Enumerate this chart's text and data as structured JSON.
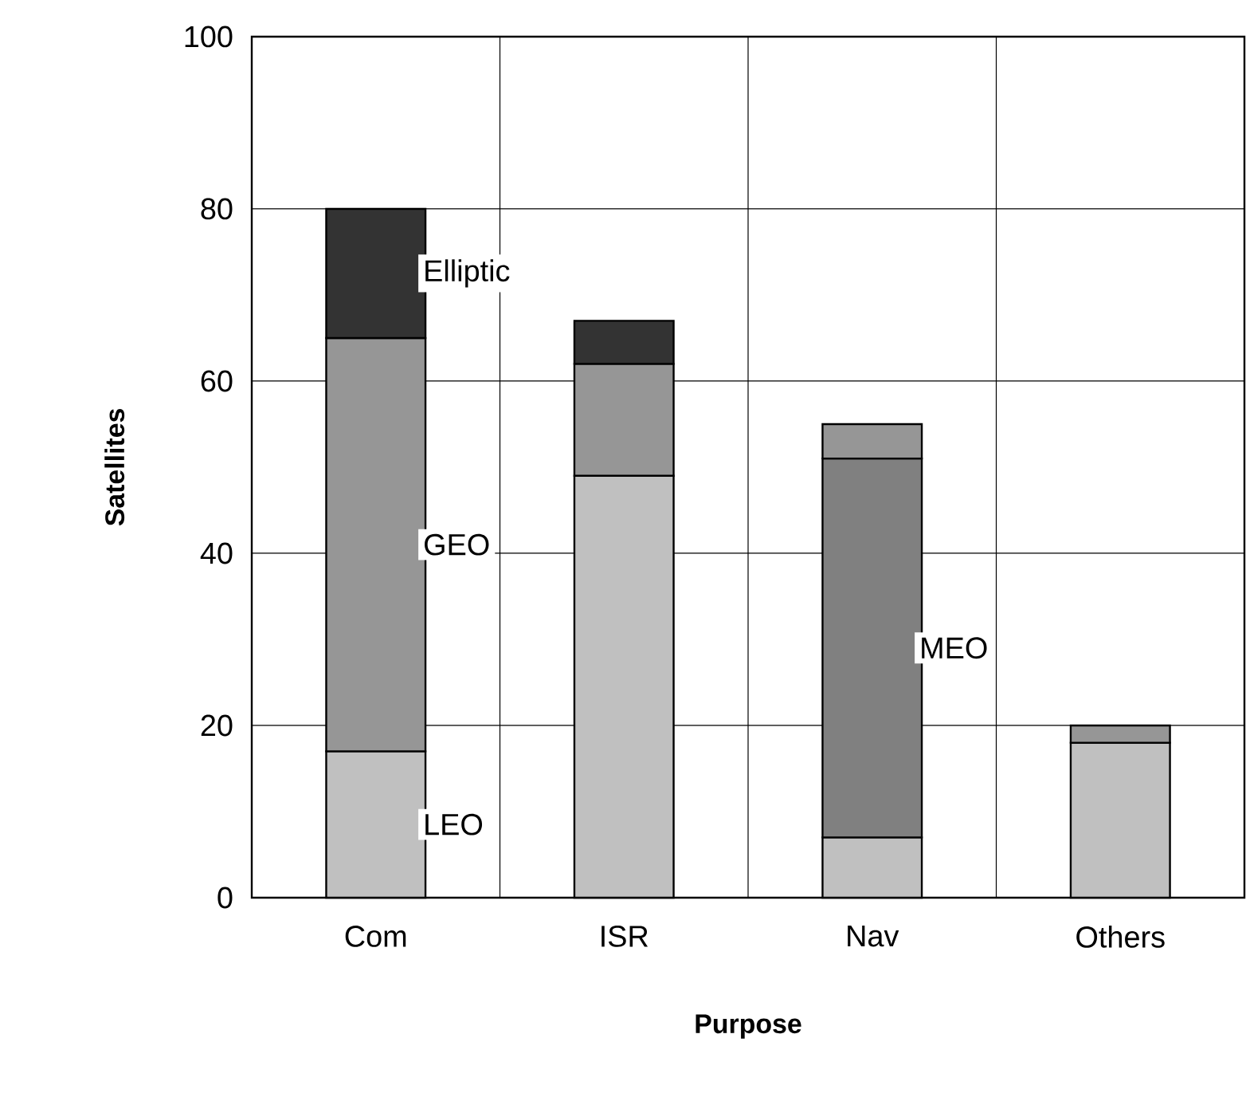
{
  "chart_data": {
    "type": "bar",
    "stacked": true,
    "xlabel": "Purpose",
    "ylabel": "Satellites",
    "categories": [
      "Com",
      "ISR",
      "Nav",
      "Others"
    ],
    "series": [
      {
        "name": "LEO",
        "color": "#c0c0c0",
        "values": [
          17,
          49,
          7,
          18
        ]
      },
      {
        "name": "MEO",
        "color": "#808080",
        "values": [
          null,
          null,
          44,
          null
        ]
      },
      {
        "name": "GEO",
        "color": "#969696",
        "values": [
          48,
          13,
          4,
          2
        ]
      },
      {
        "name": "Elliptic",
        "color": "#333333",
        "values": [
          15,
          5,
          null,
          null
        ]
      }
    ],
    "ylim": [
      0,
      100
    ],
    "yticks": [
      0,
      20,
      40,
      60,
      80,
      100
    ],
    "grid": true
  }
}
